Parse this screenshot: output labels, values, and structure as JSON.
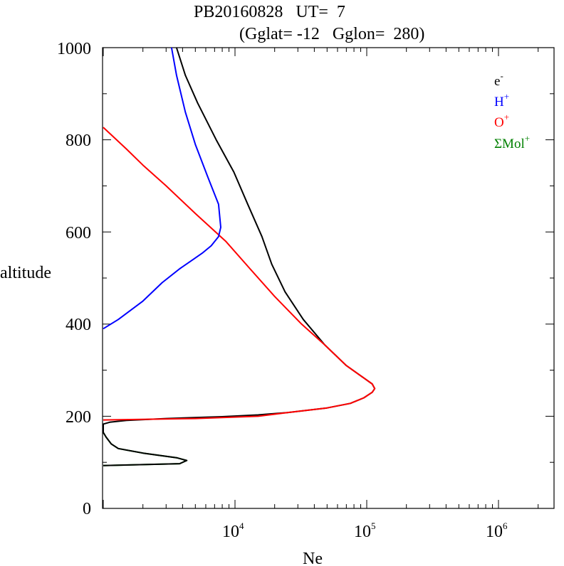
{
  "chart_data": {
    "type": "line",
    "title": "PB20160828   UT=  7",
    "subtitle": "(Gglat= -12   Gglon=  280)",
    "xlabel": "Ne",
    "ylabel": "altitude",
    "xscale": "log",
    "xlim": [
      1000,
      3000000
    ],
    "ylim": [
      0,
      1000
    ],
    "yticks": [
      "0",
      "200",
      "400",
      "600",
      "800",
      "1000"
    ],
    "xticks": [
      {
        "base": "10",
        "exp": "4"
      },
      {
        "base": "10",
        "exp": "5"
      },
      {
        "base": "10",
        "exp": "6"
      }
    ],
    "legend_position": "top-right",
    "legend": [
      {
        "name": "e",
        "sup": "-",
        "color": "#000000"
      },
      {
        "name": "H",
        "sup": "+",
        "color": "#0000ff"
      },
      {
        "name": "O",
        "sup": "+",
        "color": "#ff0000"
      },
      {
        "name": "ΣMol",
        "sup": "+",
        "color": "#008000"
      }
    ],
    "series": [
      {
        "name": "ΣMol+",
        "color": "#008000",
        "points": [
          [
            1000,
            93
          ],
          [
            3800,
            97
          ],
          [
            4300,
            104
          ],
          [
            3600,
            110
          ],
          [
            2000,
            120
          ],
          [
            1300,
            130
          ],
          [
            1150,
            140
          ],
          [
            1050,
            155
          ],
          [
            1000,
            165
          ]
        ]
      },
      {
        "name": "e-",
        "color": "#000000",
        "points": [
          [
            1000,
            93
          ],
          [
            3800,
            97
          ],
          [
            4300,
            104
          ],
          [
            3600,
            110
          ],
          [
            2000,
            120
          ],
          [
            1300,
            130
          ],
          [
            1150,
            140
          ],
          [
            1050,
            155
          ],
          [
            1000,
            165
          ],
          [
            1000,
            183
          ],
          [
            1120,
            187
          ],
          [
            1500,
            191
          ],
          [
            3000,
            195
          ],
          [
            8000,
            199
          ],
          [
            15000,
            203
          ],
          [
            25000,
            208
          ],
          [
            50000,
            218
          ],
          [
            75000,
            228
          ],
          [
            95000,
            240
          ],
          [
            110000,
            252
          ],
          [
            115000,
            260
          ],
          [
            110000,
            270
          ],
          [
            95000,
            283
          ],
          [
            70000,
            310
          ],
          [
            48000,
            355
          ],
          [
            33000,
            410
          ],
          [
            24000,
            470
          ],
          [
            19000,
            530
          ],
          [
            16000,
            590
          ],
          [
            12500,
            660
          ],
          [
            9800,
            730
          ],
          [
            7200,
            800
          ],
          [
            5200,
            880
          ],
          [
            4200,
            940
          ],
          [
            3600,
            1000
          ]
        ]
      },
      {
        "name": "O+",
        "color": "#ff0000",
        "points": [
          [
            1000,
            192
          ],
          [
            5000,
            195
          ],
          [
            15000,
            200
          ],
          [
            25000,
            208
          ],
          [
            50000,
            218
          ],
          [
            75000,
            228
          ],
          [
            95000,
            240
          ],
          [
            110000,
            252
          ],
          [
            115000,
            260
          ],
          [
            110000,
            270
          ],
          [
            95000,
            283
          ],
          [
            70000,
            310
          ],
          [
            48000,
            355
          ],
          [
            32000,
            400
          ],
          [
            20000,
            460
          ],
          [
            13000,
            520
          ],
          [
            8500,
            580
          ],
          [
            5000,
            640
          ],
          [
            3000,
            700
          ],
          [
            2000,
            745
          ],
          [
            1500,
            780
          ],
          [
            1000,
            827
          ]
        ]
      },
      {
        "name": "H+",
        "color": "#0000ff",
        "points": [
          [
            1000,
            390
          ],
          [
            1300,
            410
          ],
          [
            2000,
            450
          ],
          [
            2800,
            490
          ],
          [
            3800,
            520
          ],
          [
            4800,
            540
          ],
          [
            5700,
            555
          ],
          [
            6600,
            570
          ],
          [
            7500,
            590
          ],
          [
            7800,
            610
          ],
          [
            7500,
            660
          ],
          [
            6200,
            720
          ],
          [
            5000,
            790
          ],
          [
            4200,
            860
          ],
          [
            3600,
            940
          ],
          [
            3300,
            1000
          ]
        ]
      }
    ]
  }
}
